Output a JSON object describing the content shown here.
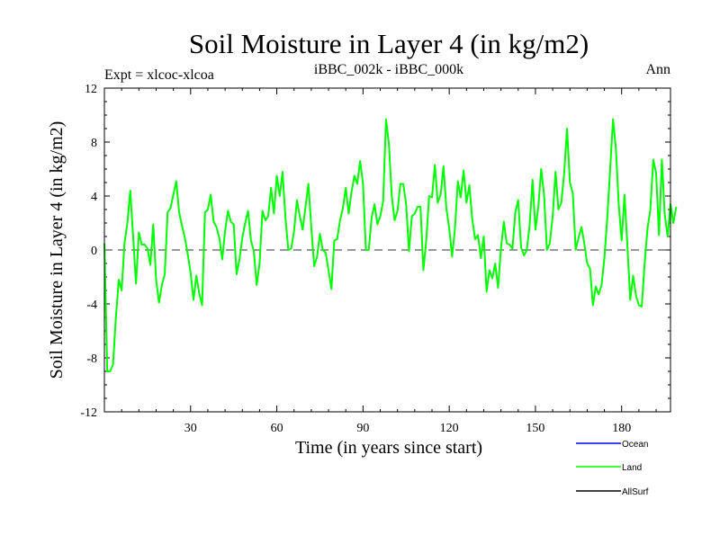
{
  "chart_data": {
    "type": "line",
    "title": "Soil Moisture in Layer 4 (in kg/m2)",
    "subtitle_left": "Expt = xlcoc-xlcoa",
    "subtitle_center": "iBBC_002k - iBBC_000k",
    "subtitle_right": "Ann",
    "xlabel": "Time (in years since start)",
    "ylabel": "Soil Moisture in Layer 4 (in kg/m2)",
    "xlim": [
      0,
      197
    ],
    "ylim": [
      -12,
      12
    ],
    "x_ticks": [
      30,
      60,
      90,
      120,
      150,
      180
    ],
    "x_tick_labels": [
      "30",
      "60",
      "90",
      "120",
      "150",
      "180"
    ],
    "y_ticks": [
      12,
      8,
      4,
      0,
      -4,
      -8,
      -12
    ],
    "y_tick_labels": [
      "12",
      "8",
      "4",
      "0",
      "-4",
      "-8",
      "-12"
    ],
    "reference_line": 0,
    "series": [
      {
        "name": "Ocean",
        "color": "#0000ff",
        "values": []
      },
      {
        "name": "Land",
        "color": "#00ff00",
        "values": [
          0.5,
          -9.0,
          -9.0,
          -8.5,
          -5.0,
          -2.2,
          -3.0,
          0.5,
          2.0,
          4.4,
          1.0,
          -2.5,
          1.3,
          0.4,
          0.4,
          0.1,
          -1.1,
          1.9,
          -2.2,
          -3.9,
          -2.6,
          -1.8,
          2.8,
          3.1,
          4.1,
          5.1,
          2.8,
          1.8,
          0.9,
          -0.3,
          -1.7,
          -3.7,
          -1.9,
          -3.2,
          -4.1,
          2.8,
          3.0,
          4.1,
          2.1,
          1.7,
          0.9,
          -0.7,
          1.4,
          2.9,
          2.1,
          1.9,
          -1.8,
          -0.7,
          0.9,
          2.0,
          2.9,
          0.7,
          -0.1,
          -2.6,
          -1.0,
          2.9,
          2.2,
          2.5,
          4.6,
          2.7,
          5.5,
          4.0,
          5.8,
          2.4,
          0.0,
          0.1,
          1.4,
          3.7,
          2.5,
          1.5,
          3.2,
          4.9,
          1.7,
          -1.2,
          -0.5,
          1.2,
          0.0,
          -0.2,
          -1.5,
          -2.9,
          0.7,
          0.8,
          2.2,
          3.1,
          4.6,
          2.7,
          4.3,
          5.5,
          4.9,
          6.6,
          4.9,
          0.0,
          0.0,
          2.4,
          3.4,
          1.9,
          2.5,
          3.6,
          9.7,
          7.9,
          4.0,
          2.2,
          2.9,
          4.9,
          4.9,
          3.4,
          -0.1,
          2.5,
          2.7,
          3.2,
          3.2,
          -1.5,
          0.7,
          4.0,
          3.9,
          6.3,
          3.5,
          4.1,
          6.2,
          3.1,
          1.6,
          -0.5,
          1.6,
          5.1,
          3.9,
          5.9,
          3.5,
          4.8,
          2.3,
          0.8,
          1.1,
          -0.6,
          1.0,
          -3.1,
          -1.5,
          -2.1,
          -1.0,
          -2.8,
          0.1,
          2.1,
          0.5,
          0.4,
          0.1,
          2.8,
          3.7,
          0.2,
          -0.4,
          0.0,
          1.9,
          5.2,
          1.5,
          3.2,
          6.0,
          4.1,
          0.0,
          0.5,
          2.5,
          5.8,
          3.0,
          3.5,
          5.7,
          9.0,
          5.0,
          4.2,
          0.0,
          0.9,
          1.7,
          0.5,
          -1.0,
          -1.4,
          -4.1,
          -2.7,
          -3.3,
          -2.6,
          -0.6,
          2.4,
          6.0,
          9.7,
          7.5,
          3.3,
          0.7,
          4.1,
          0.3,
          -3.7,
          -1.9,
          -3.4,
          -4.1,
          -4.2,
          -1.0,
          1.6,
          3.0,
          6.7,
          5.7,
          1.1,
          6.7,
          2.6,
          1.0,
          3.4,
          2.0,
          3.2
        ]
      },
      {
        "name": "AllSurf",
        "color": "#000000",
        "values": []
      }
    ]
  }
}
